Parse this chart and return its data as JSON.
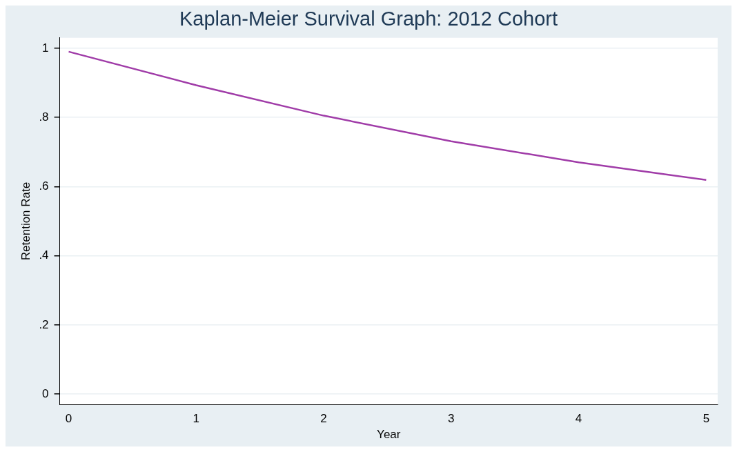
{
  "chart_data": {
    "type": "line",
    "title": "Kaplan-Meier Survival Graph: 2012 Cohort",
    "xlabel": "Year",
    "ylabel": "Retention Rate",
    "x": [
      0,
      1,
      2,
      3,
      4,
      5
    ],
    "series": [
      {
        "color": "#a03ca8",
        "values": [
          0.99,
          0.893,
          0.805,
          0.731,
          0.67,
          0.619
        ]
      }
    ],
    "xlim": [
      -0.07,
      5.09
    ],
    "xticks": [
      0,
      1,
      2,
      3,
      4,
      5
    ],
    "ylim": [
      -0.03,
      1.03
    ],
    "yticks": [
      0,
      {
        "value": 0.2,
        "label": ".2"
      },
      {
        "value": 0.4,
        "label": ".4"
      },
      {
        "value": 0.6,
        "label": ".6"
      },
      {
        "value": 0.8,
        "label": ".8"
      },
      1
    ],
    "grid": "y",
    "legend": false,
    "marker": "none",
    "line_style": "solid"
  }
}
